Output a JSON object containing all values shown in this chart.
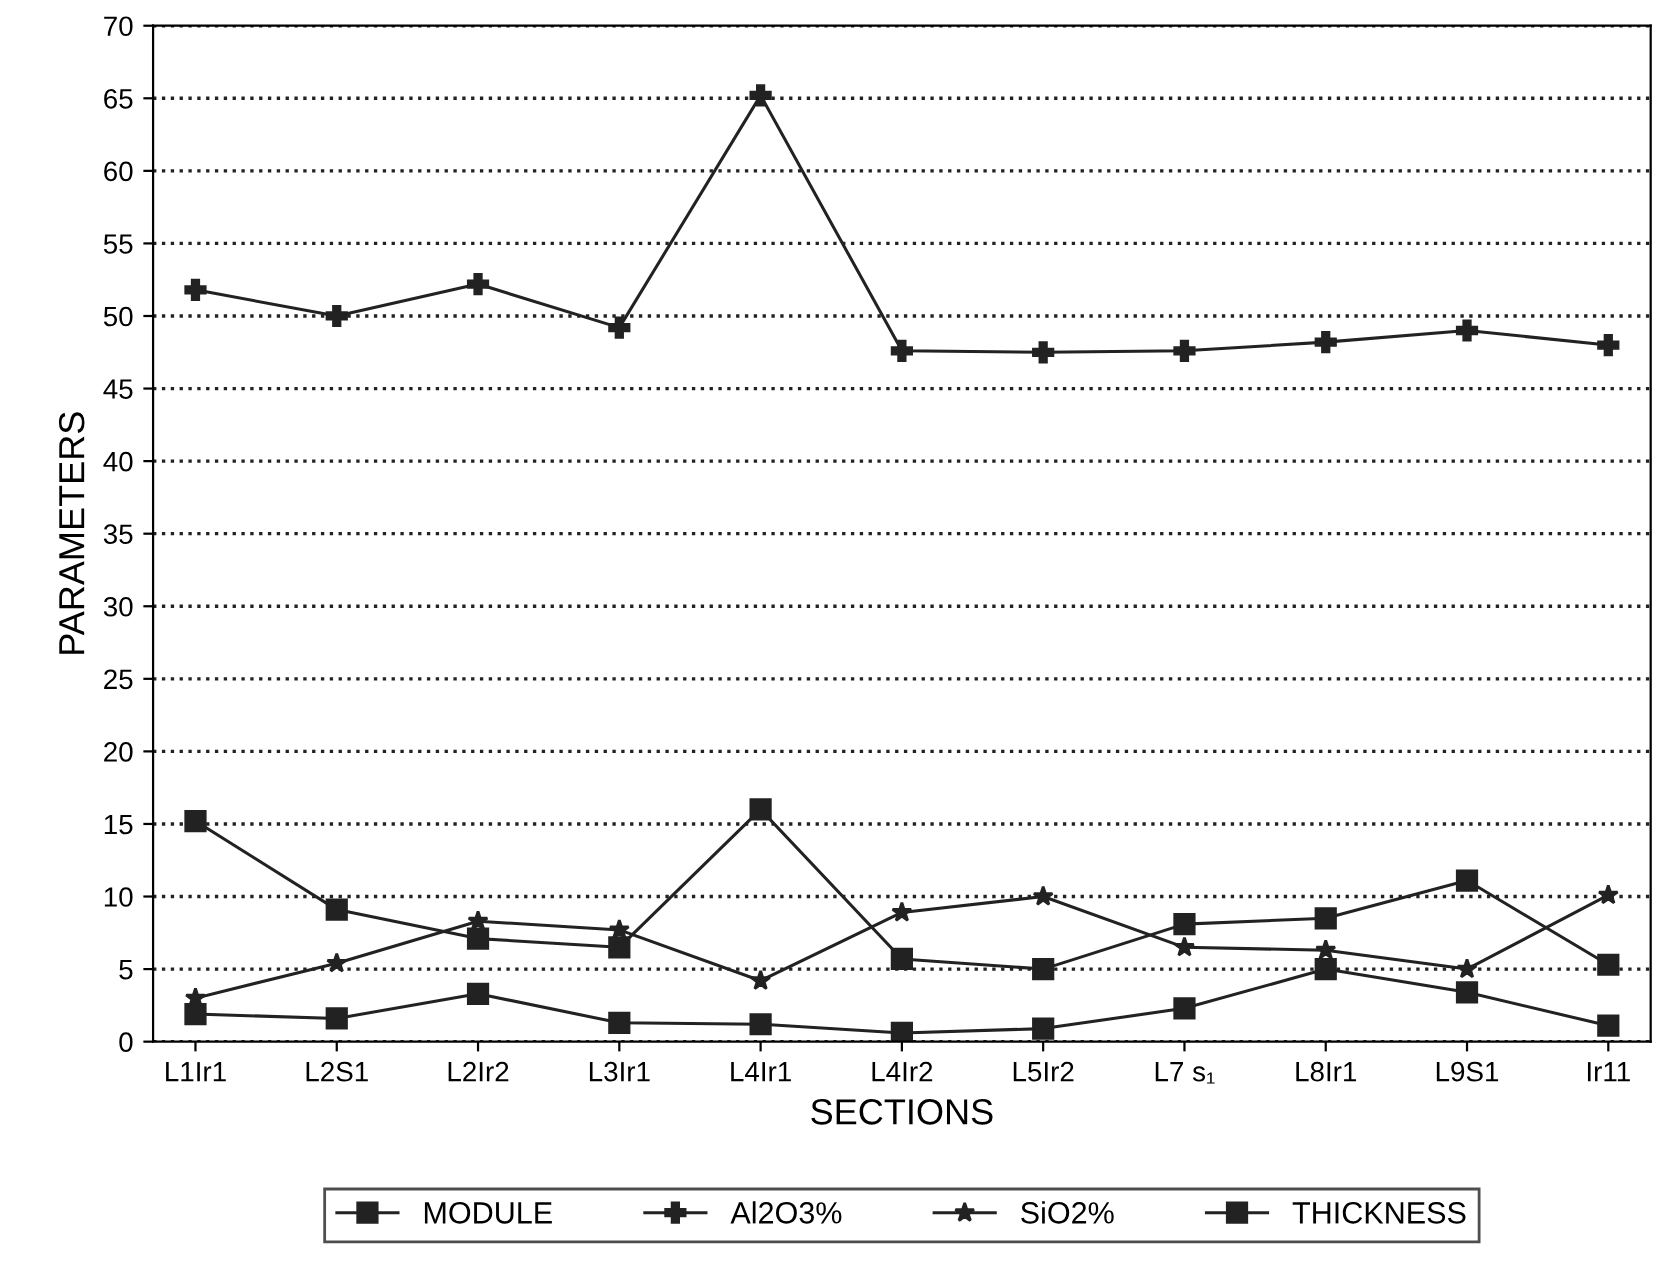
{
  "chart_data": {
    "type": "line",
    "xlabel": "SECTIONS",
    "ylabel": "PARAMETERS",
    "categories": [
      "L1Ir1",
      "L2S1",
      "L2Ir2",
      "L3Ir1",
      "L4Ir1",
      "L4Ir2",
      "L5Ir2",
      "L7 s₁",
      "L8Ir1",
      "L9S1",
      "Ir11"
    ],
    "ylim": [
      0,
      70
    ],
    "yticks": [
      0,
      5,
      10,
      15,
      20,
      25,
      30,
      35,
      40,
      45,
      50,
      55,
      60,
      65,
      70
    ],
    "grid": "y",
    "legend": "bottom",
    "series": [
      {
        "name": "MODULE",
        "color": "#222222",
        "marker": "square",
        "values": [
          15.2,
          9.1,
          7.1,
          6.5,
          16.0,
          5.7,
          5.0,
          8.1,
          8.5,
          11.1,
          5.3
        ]
      },
      {
        "name": "Al2O3%",
        "color": "#222222",
        "marker": "cross",
        "values": [
          51.8,
          50.0,
          52.2,
          49.2,
          65.2,
          47.6,
          47.5,
          47.6,
          48.2,
          49.0,
          48.0
        ]
      },
      {
        "name": "SiO2%",
        "color": "#222222",
        "marker": "star",
        "values": [
          3.0,
          5.4,
          8.3,
          7.7,
          4.2,
          8.9,
          10.0,
          6.5,
          6.3,
          5.0,
          10.1
        ]
      },
      {
        "name": "THICKNESS",
        "color": "#222222",
        "marker": "square",
        "values": [
          1.9,
          1.6,
          3.3,
          1.3,
          1.2,
          0.6,
          0.9,
          2.3,
          5.0,
          3.4,
          1.1
        ]
      }
    ]
  }
}
